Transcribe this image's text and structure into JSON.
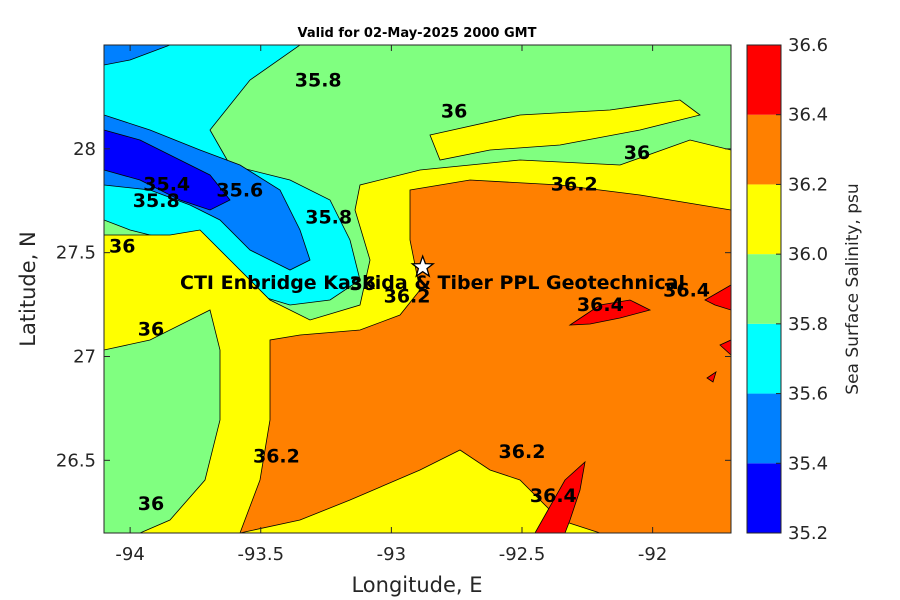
{
  "chart_data": {
    "type": "contour",
    "title": "Valid for 02-May-2025 2000 GMT",
    "xlabel": "Longitude, E",
    "ylabel": "Latitude, N",
    "xlim": [
      -94.1,
      -91.7
    ],
    "ylim": [
      26.15,
      28.5
    ],
    "xticks": [
      -94,
      -93.5,
      -93,
      -92.5,
      -92
    ],
    "yticks": [
      26.5,
      27,
      27.5,
      28
    ],
    "colorbar": {
      "label": "Sea Surface Salinity, psu",
      "levels": [
        35.2,
        35.4,
        35.6,
        35.8,
        36,
        36.2,
        36.4,
        36.6
      ],
      "colors": [
        "#0000ff",
        "#0080ff",
        "#00ffff",
        "#80ff80",
        "#ffff00",
        "#ff8000",
        "#ff0000"
      ]
    },
    "contour_labels": [
      {
        "text": "35.8",
        "x": -93.28,
        "y": 28.3
      },
      {
        "text": "36",
        "x": -92.76,
        "y": 28.15
      },
      {
        "text": "36",
        "x": -92.06,
        "y": 27.95
      },
      {
        "text": "36.2",
        "x": -92.3,
        "y": 27.8
      },
      {
        "text": "35.4",
        "x": -93.86,
        "y": 27.8
      },
      {
        "text": "35.6",
        "x": -93.58,
        "y": 27.77
      },
      {
        "text": "35.8",
        "x": -93.9,
        "y": 27.72
      },
      {
        "text": "35.8",
        "x": -93.24,
        "y": 27.64
      },
      {
        "text": "36",
        "x": -94.03,
        "y": 27.5
      },
      {
        "text": "36",
        "x": -93.11,
        "y": 27.32
      },
      {
        "text": "36.2",
        "x": -92.94,
        "y": 27.26
      },
      {
        "text": "36.4",
        "x": -92.2,
        "y": 27.22
      },
      {
        "text": "36.4",
        "x": -91.87,
        "y": 27.29
      },
      {
        "text": "36",
        "x": -93.92,
        "y": 27.1
      },
      {
        "text": "36.2",
        "x": -93.44,
        "y": 26.49
      },
      {
        "text": "36.2",
        "x": -92.5,
        "y": 26.51
      },
      {
        "text": "36.4",
        "x": -92.38,
        "y": 26.3
      },
      {
        "text": "36",
        "x": -93.92,
        "y": 26.26
      }
    ],
    "site_marker": {
      "label": "CTI Enbridge  Kaskida & Tiber PPL Geotechnical",
      "x": -92.88,
      "y": 27.43
    }
  }
}
